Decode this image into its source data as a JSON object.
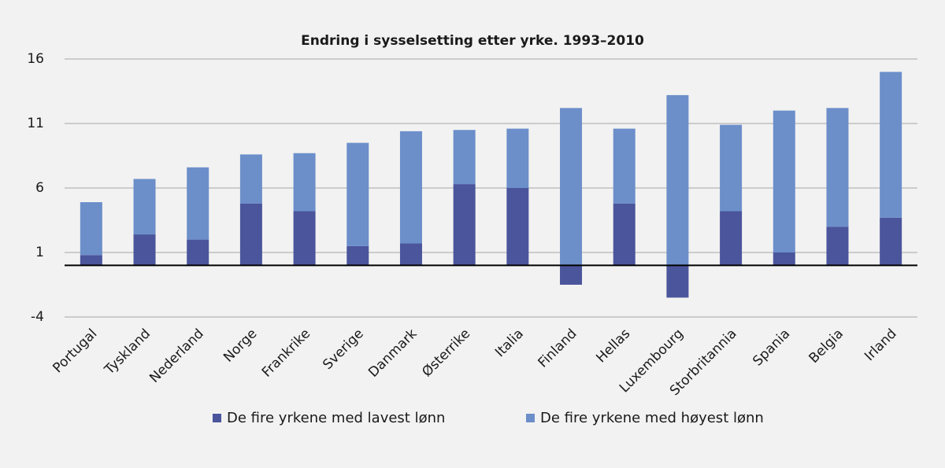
{
  "chart_data": {
    "type": "stacked_bar",
    "title": "Endring i sysselsetting etter yrke. 1993–2010",
    "categories": [
      "Portugal",
      "Tyskland",
      "Nederland",
      "Norge",
      "Frankrike",
      "Sverige",
      "Danmark",
      "Østerrike",
      "Italia",
      "Finland",
      "Hellas",
      "Luxembourg",
      "Storbritannia",
      "Spania",
      "Belgia",
      "Irland"
    ],
    "series": [
      {
        "name": "De fire yrkene med lavest lønn",
        "color": "#4a559c",
        "values": [
          0.8,
          2.4,
          2.0,
          4.8,
          4.2,
          1.5,
          1.7,
          6.3,
          6.0,
          -1.5,
          4.8,
          -2.5,
          4.2,
          1.0,
          3.0,
          3.7
        ]
      },
      {
        "name": "De fire yrkene med høyest lønn",
        "color": "#6c8fca",
        "values": [
          4.1,
          4.3,
          5.6,
          3.8,
          4.5,
          8.0,
          8.7,
          4.2,
          4.6,
          12.2,
          5.8,
          13.2,
          6.7,
          11.0,
          9.2,
          11.3
        ]
      }
    ],
    "ylim": [
      -4,
      16
    ],
    "yticks": [
      -4,
      1,
      6,
      11,
      16
    ],
    "grid": true
  }
}
